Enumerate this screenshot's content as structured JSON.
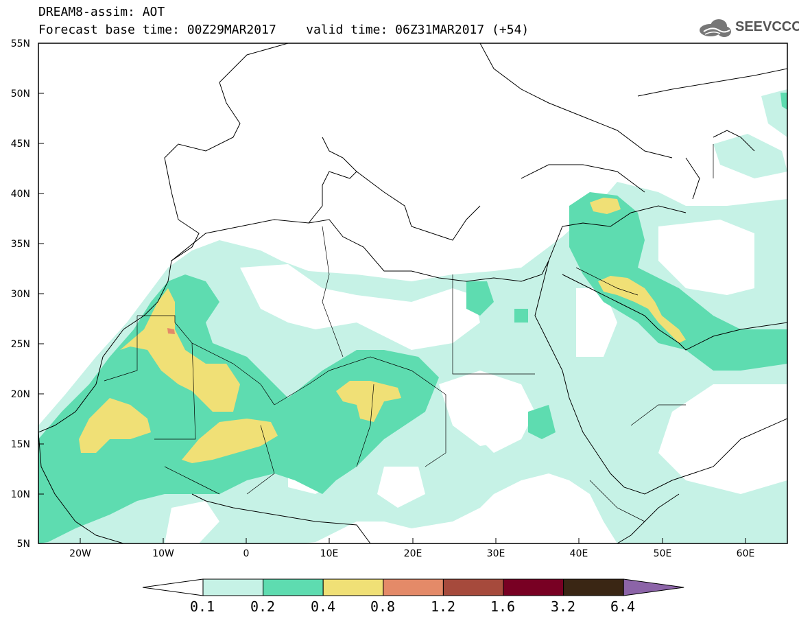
{
  "header": {
    "title_line1": "DREAM8-assim: AOT",
    "title_line2": "Forecast base time: 00Z29MAR2017    valid time: 06Z31MAR2017 (+54)",
    "logo_text": "SEEVCCC",
    "logo_icon": "cloud-gear-icon"
  },
  "map": {
    "lat_range": [
      5,
      55
    ],
    "lon_range": [
      -25,
      65
    ],
    "lat_labels": [
      "55N",
      "50N",
      "45N",
      "40N",
      "35N",
      "30N",
      "25N",
      "20N",
      "15N",
      "10N",
      "5N"
    ],
    "lon_labels": [
      "20W",
      "10W",
      "0",
      "10E",
      "20E",
      "30E",
      "40E",
      "50E",
      "60E"
    ],
    "coastline_color": "#000000",
    "background_color": "#ffffff"
  },
  "colorbar": {
    "labels": [
      "0.1",
      "0.2",
      "0.4",
      "0.8",
      "1.2",
      "1.6",
      "3.2",
      "6.4"
    ],
    "colors": [
      "#ffffff",
      "#c6f2e6",
      "#5edcb0",
      "#f0e076",
      "#e48a68",
      "#a64a3c",
      "#780023",
      "#3a2614",
      "#8c64a8"
    ]
  },
  "legend_colors": {
    "lt_0_1": "#ffffff",
    "c_0_1_0_2": "#c6f2e6",
    "c_0_2_0_4": "#5edcb0",
    "c_0_4_0_8": "#f0e076",
    "c_0_8_1_2": "#e48a68"
  }
}
